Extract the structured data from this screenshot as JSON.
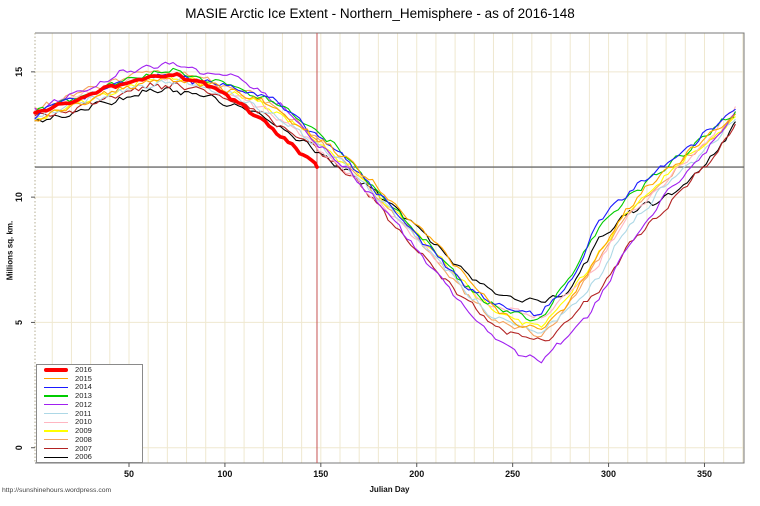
{
  "title": "MASIE Arctic Ice Extent - Northern_Hemisphere - as of 2016-148",
  "caption": "http://sunshinehours.wordpress.com",
  "chart_data": {
    "type": "line",
    "title": "MASIE Arctic Ice Extent - Northern_Hemisphere - as of 2016-148",
    "xlabel": "Julian Day",
    "ylabel": "Millions sq. km.",
    "xlim": [
      1,
      370.6
    ],
    "ylim": [
      -0.61,
      16.55
    ],
    "x_ticks": [
      50,
      100,
      150,
      200,
      250,
      300,
      350
    ],
    "y_ticks": [
      0,
      5,
      10,
      15
    ],
    "grid": {
      "vertical_every_days": 10,
      "horizontal_every_units": 5,
      "style": "light"
    },
    "legend_position": "bottom-left",
    "reference_lines": {
      "horizontal_value": 11.2,
      "vertical_day": 148
    },
    "colors": {
      "grid": "#efe8d0",
      "frame": "#7a7a7a",
      "h_reference": "#6b6b6b",
      "v_reference": "#c65353",
      "tick_text": "#111111"
    },
    "series": [
      {
        "name": "2016",
        "color": "#FF0000",
        "line_width": 3.6,
        "days": [
          1,
          15,
          30,
          45,
          60,
          75,
          90,
          105,
          120,
          135,
          148
        ],
        "values": [
          13.3,
          13.7,
          14.1,
          14.5,
          14.8,
          14.9,
          14.5,
          13.9,
          13.0,
          12.1,
          11.2
        ]
      },
      {
        "name": "2015",
        "color": "#FFA500",
        "line_width": 1.1,
        "days": [
          1,
          15,
          30,
          45,
          60,
          75,
          90,
          105,
          120,
          135,
          150,
          165,
          180,
          195,
          210,
          225,
          240,
          255,
          265,
          280,
          295,
          310,
          325,
          340,
          355,
          366
        ],
        "values": [
          13.0,
          13.5,
          13.9,
          14.3,
          14.6,
          14.7,
          14.5,
          14.2,
          13.8,
          13.1,
          12.2,
          11.5,
          10.3,
          9.2,
          8.2,
          6.9,
          5.6,
          4.9,
          4.7,
          5.9,
          7.7,
          9.6,
          10.7,
          11.7,
          12.6,
          13.3
        ]
      },
      {
        "name": "2014",
        "color": "#1A1AFF",
        "line_width": 1.1,
        "days": [
          1,
          15,
          30,
          45,
          60,
          75,
          90,
          105,
          120,
          135,
          150,
          165,
          180,
          195,
          210,
          225,
          240,
          255,
          265,
          280,
          295,
          310,
          325,
          340,
          355,
          366
        ],
        "values": [
          13.3,
          13.8,
          14.1,
          14.5,
          14.8,
          14.8,
          14.6,
          14.3,
          14.1,
          13.4,
          12.3,
          11.4,
          10.1,
          8.9,
          7.7,
          6.5,
          5.7,
          5.5,
          5.3,
          6.6,
          9.0,
          10.2,
          11.0,
          11.9,
          12.8,
          13.5
        ]
      },
      {
        "name": "2013",
        "color": "#00CC00",
        "line_width": 1.1,
        "days": [
          1,
          15,
          30,
          45,
          60,
          75,
          90,
          105,
          120,
          135,
          150,
          165,
          180,
          195,
          210,
          225,
          240,
          255,
          265,
          280,
          295,
          310,
          325,
          340,
          355,
          366
        ],
        "values": [
          13.4,
          13.8,
          14.2,
          14.6,
          14.9,
          15.0,
          14.7,
          14.4,
          14.0,
          13.3,
          12.5,
          11.5,
          10.2,
          9.0,
          7.8,
          6.5,
          5.6,
          5.3,
          5.1,
          6.9,
          8.8,
          10.0,
          10.9,
          11.8,
          12.7,
          13.4
        ]
      },
      {
        "name": "2012",
        "color": "#A020F0",
        "line_width": 1.1,
        "days": [
          1,
          15,
          30,
          45,
          60,
          75,
          90,
          105,
          120,
          135,
          150,
          165,
          180,
          195,
          210,
          225,
          240,
          255,
          265,
          280,
          295,
          310,
          325,
          340,
          355,
          366
        ],
        "values": [
          13.5,
          13.9,
          14.4,
          14.9,
          15.2,
          15.3,
          15.0,
          14.8,
          14.2,
          13.2,
          12.0,
          11.0,
          9.8,
          8.4,
          7.0,
          5.6,
          4.4,
          3.7,
          3.5,
          4.5,
          5.9,
          8.0,
          9.6,
          11.0,
          12.2,
          13.4
        ]
      },
      {
        "name": "2011",
        "color": "#ADD8E6",
        "line_width": 1.1,
        "days": [
          1,
          15,
          30,
          45,
          60,
          75,
          90,
          105,
          120,
          135,
          150,
          165,
          180,
          195,
          210,
          225,
          240,
          255,
          265,
          280,
          295,
          310,
          325,
          340,
          355,
          366
        ],
        "values": [
          13.2,
          13.5,
          13.9,
          14.2,
          14.5,
          14.6,
          14.4,
          14.0,
          13.5,
          12.8,
          12.0,
          11.1,
          10.0,
          8.8,
          7.6,
          6.3,
          5.2,
          4.8,
          4.6,
          5.6,
          6.8,
          8.8,
          10.1,
          11.2,
          12.2,
          13.1
        ]
      },
      {
        "name": "2010",
        "color": "#FFB6C1",
        "line_width": 1.1,
        "days": [
          1,
          15,
          30,
          45,
          60,
          75,
          90,
          105,
          120,
          135,
          150,
          165,
          180,
          195,
          210,
          225,
          240,
          255,
          265,
          280,
          295,
          310,
          325,
          340,
          355,
          366
        ],
        "values": [
          13.4,
          13.8,
          14.2,
          14.5,
          14.8,
          14.8,
          14.5,
          14.0,
          13.6,
          12.8,
          11.9,
          10.9,
          9.8,
          8.7,
          7.6,
          6.4,
          5.6,
          5.4,
          5.2,
          6.2,
          7.4,
          9.2,
          10.3,
          11.4,
          12.6,
          13.6
        ]
      },
      {
        "name": "2009",
        "color": "#FFFF00",
        "line_width": 1.1,
        "days": [
          1,
          15,
          30,
          45,
          60,
          75,
          90,
          105,
          120,
          135,
          150,
          165,
          180,
          195,
          210,
          225,
          240,
          255,
          265,
          280,
          295,
          310,
          325,
          340,
          355,
          366
        ],
        "values": [
          13.1,
          13.5,
          13.9,
          14.3,
          14.7,
          14.8,
          14.5,
          14.1,
          13.7,
          13.0,
          12.1,
          11.2,
          10.1,
          8.9,
          7.8,
          6.5,
          5.5,
          5.0,
          4.9,
          6.1,
          7.8,
          9.4,
          10.5,
          11.5,
          12.4,
          13.2
        ]
      },
      {
        "name": "2008",
        "color": "#F4A460",
        "line_width": 1.1,
        "days": [
          1,
          15,
          30,
          45,
          60,
          75,
          90,
          105,
          120,
          135,
          150,
          165,
          180,
          195,
          210,
          225,
          240,
          255,
          265,
          280,
          295,
          310,
          325,
          340,
          355,
          366
        ],
        "values": [
          13.5,
          13.9,
          14.3,
          14.7,
          15.0,
          15.0,
          14.7,
          14.3,
          13.9,
          13.1,
          12.2,
          11.2,
          10.0,
          8.8,
          7.5,
          6.2,
          5.1,
          4.7,
          4.5,
          5.7,
          7.6,
          9.3,
          10.4,
          11.5,
          12.4,
          13.3
        ]
      },
      {
        "name": "2007",
        "color": "#B22222",
        "line_width": 1.1,
        "days": [
          1,
          15,
          30,
          45,
          60,
          75,
          90,
          105,
          120,
          135,
          150,
          165,
          180,
          195,
          210,
          225,
          240,
          255,
          265,
          280,
          295,
          310,
          325,
          340,
          355,
          366
        ],
        "values": [
          13.2,
          13.4,
          13.7,
          14.1,
          14.4,
          14.5,
          14.2,
          13.8,
          13.3,
          12.6,
          11.8,
          10.9,
          9.7,
          8.3,
          7.1,
          5.9,
          4.9,
          4.4,
          4.2,
          5.1,
          6.3,
          8.0,
          9.2,
          10.4,
          11.6,
          12.9
        ]
      },
      {
        "name": "2006",
        "color": "#000000",
        "line_width": 1.1,
        "days": [
          1,
          15,
          30,
          45,
          60,
          75,
          90,
          105,
          120,
          135,
          150,
          165,
          180,
          195,
          210,
          225,
          240,
          255,
          265,
          280,
          295,
          310,
          325,
          340,
          355,
          366
        ],
        "values": [
          13.0,
          13.2,
          13.6,
          13.9,
          14.2,
          14.3,
          14.0,
          13.7,
          13.2,
          12.5,
          11.7,
          11.0,
          10.1,
          9.2,
          8.1,
          7.0,
          6.2,
          5.9,
          5.8,
          6.3,
          8.3,
          9.4,
          9.8,
          10.5,
          11.7,
          13.0
        ]
      }
    ]
  }
}
